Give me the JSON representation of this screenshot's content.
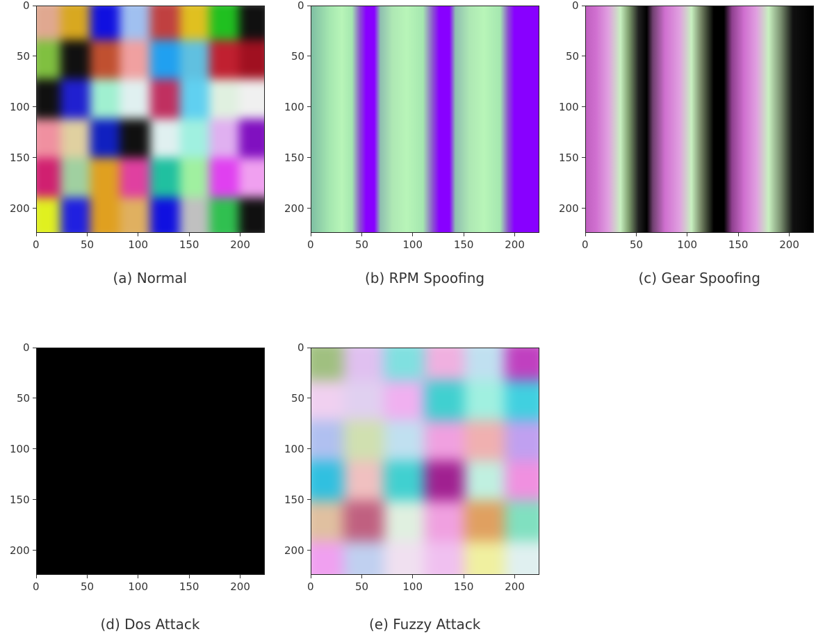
{
  "chart_data": [
    {
      "type": "heatmap",
      "caption": "(a) Normal",
      "xlim": [
        0,
        224
      ],
      "ylim": [
        0,
        224
      ],
      "xticks": [
        "0",
        "50",
        "100",
        "150",
        "200"
      ],
      "yticks": [
        "0",
        "50",
        "100",
        "150",
        "200"
      ],
      "pattern": "colorful blurred blocks",
      "blocks": [
        {
          "color": "#e0a890"
        },
        {
          "color": "#d8a820"
        },
        {
          "color": "#1010e0"
        },
        {
          "color": "#a0c0f0"
        },
        {
          "color": "#c04040"
        },
        {
          "color": "#e0c020"
        },
        {
          "color": "#20c020"
        },
        {
          "color": "#101010"
        },
        {
          "color": "#80c040"
        },
        {
          "color": "#101010"
        },
        {
          "color": "#c05030"
        },
        {
          "color": "#f0a0a0"
        },
        {
          "color": "#20a0f0"
        },
        {
          "color": "#60c0e0"
        },
        {
          "color": "#c02030"
        },
        {
          "color": "#a01020"
        },
        {
          "color": "#101010"
        },
        {
          "color": "#2020d0"
        },
        {
          "color": "#a0f0d0"
        },
        {
          "color": "#e0f0f0"
        },
        {
          "color": "#c03060"
        },
        {
          "color": "#60d0f0"
        },
        {
          "color": "#e0f0e0"
        },
        {
          "color": "#f0f0f0"
        },
        {
          "color": "#f090a0"
        },
        {
          "color": "#e0d0a0"
        },
        {
          "color": "#1020c0"
        },
        {
          "color": "#101010"
        },
        {
          "color": "#e0f0f0"
        },
        {
          "color": "#a0f0e0"
        },
        {
          "color": "#e0b0f0"
        },
        {
          "color": "#8010c0"
        },
        {
          "color": "#d02070"
        },
        {
          "color": "#a0d0a0"
        },
        {
          "color": "#e0a020"
        },
        {
          "color": "#e040a0"
        },
        {
          "color": "#20c0a0"
        },
        {
          "color": "#a0f0a0"
        },
        {
          "color": "#e040f0"
        },
        {
          "color": "#f0a0f0"
        },
        {
          "color": "#e0f020"
        },
        {
          "color": "#2020e0"
        },
        {
          "color": "#e0a020"
        },
        {
          "color": "#e0b060"
        },
        {
          "color": "#1010e0"
        },
        {
          "color": "#c0c0c0"
        },
        {
          "color": "#30c050"
        },
        {
          "color": "#101010"
        }
      ]
    },
    {
      "type": "heatmap",
      "caption": "(b) RPM Spoofing",
      "xlim": [
        0,
        224
      ],
      "ylim": [
        0,
        224
      ],
      "xticks": [
        "0",
        "50",
        "100",
        "150",
        "200"
      ],
      "yticks": [
        "0",
        "50",
        "100",
        "150",
        "200"
      ],
      "pattern": "vertical stripes",
      "gradient": [
        {
          "x": 0,
          "color": "#7fbfa3"
        },
        {
          "x": 18,
          "color": "#a5e7b0"
        },
        {
          "x": 30,
          "color": "#b8f5b8"
        },
        {
          "x": 40,
          "color": "#a5e7b0"
        },
        {
          "x": 48,
          "color": "#8a50d0"
        },
        {
          "x": 54,
          "color": "#8800ff"
        },
        {
          "x": 62,
          "color": "#8800ff"
        },
        {
          "x": 68,
          "color": "#8fbfb0"
        },
        {
          "x": 80,
          "color": "#aee8b4"
        },
        {
          "x": 94,
          "color": "#b8f5b8"
        },
        {
          "x": 110,
          "color": "#a5e7b0"
        },
        {
          "x": 120,
          "color": "#8a50d0"
        },
        {
          "x": 126,
          "color": "#8800ff"
        },
        {
          "x": 136,
          "color": "#8800ff"
        },
        {
          "x": 142,
          "color": "#8fbfb0"
        },
        {
          "x": 156,
          "color": "#aee8b4"
        },
        {
          "x": 170,
          "color": "#b8f5b8"
        },
        {
          "x": 186,
          "color": "#a5e7b0"
        },
        {
          "x": 194,
          "color": "#8a50d0"
        },
        {
          "x": 200,
          "color": "#8800ff"
        },
        {
          "x": 224,
          "color": "#8800ff"
        }
      ]
    },
    {
      "type": "heatmap",
      "caption": "(c) Gear Spoofing",
      "xlim": [
        0,
        224
      ],
      "ylim": [
        0,
        224
      ],
      "xticks": [
        "0",
        "50",
        "100",
        "150",
        "200"
      ],
      "yticks": [
        "0",
        "50",
        "100",
        "150",
        "200"
      ],
      "pattern": "vertical stripes",
      "gradient": [
        {
          "x": 0,
          "color": "#c060c0"
        },
        {
          "x": 10,
          "color": "#d070d0"
        },
        {
          "x": 22,
          "color": "#e0a0e0"
        },
        {
          "x": 34,
          "color": "#c8f0c0"
        },
        {
          "x": 42,
          "color": "#80a070"
        },
        {
          "x": 52,
          "color": "#202020"
        },
        {
          "x": 60,
          "color": "#000000"
        },
        {
          "x": 66,
          "color": "#704070"
        },
        {
          "x": 78,
          "color": "#d070d0"
        },
        {
          "x": 92,
          "color": "#e0a0e0"
        },
        {
          "x": 104,
          "color": "#c8f0c0"
        },
        {
          "x": 114,
          "color": "#708060"
        },
        {
          "x": 126,
          "color": "#000000"
        },
        {
          "x": 136,
          "color": "#000000"
        },
        {
          "x": 144,
          "color": "#904090"
        },
        {
          "x": 156,
          "color": "#d070d0"
        },
        {
          "x": 168,
          "color": "#e0a0e0"
        },
        {
          "x": 180,
          "color": "#c8f0c0"
        },
        {
          "x": 192,
          "color": "#7a9070"
        },
        {
          "x": 204,
          "color": "#101010"
        },
        {
          "x": 224,
          "color": "#000000"
        }
      ]
    },
    {
      "type": "heatmap",
      "caption": "(d) Dos Attack",
      "xlim": [
        0,
        224
      ],
      "ylim": [
        0,
        224
      ],
      "xticks": [
        "0",
        "50",
        "100",
        "150",
        "200"
      ],
      "yticks": [
        "0",
        "50",
        "100",
        "150",
        "200"
      ],
      "pattern": "uniform",
      "color": "#000000"
    },
    {
      "type": "heatmap",
      "caption": "(e) Fuzzy Attack",
      "xlim": [
        0,
        224
      ],
      "ylim": [
        0,
        224
      ],
      "xticks": [
        "0",
        "50",
        "100",
        "150",
        "200"
      ],
      "yticks": [
        "0",
        "50",
        "100",
        "150",
        "200"
      ],
      "pattern": "pastel blurred blocks",
      "blocks": [
        {
          "color": "#a0c080"
        },
        {
          "color": "#e0c0f0"
        },
        {
          "color": "#80e0e0"
        },
        {
          "color": "#f0b0e0"
        },
        {
          "color": "#c0e0f0"
        },
        {
          "color": "#c040c0"
        },
        {
          "color": "#f0d0f0"
        },
        {
          "color": "#e0d0f0"
        },
        {
          "color": "#f0b0f0"
        },
        {
          "color": "#40d0d0"
        },
        {
          "color": "#a0f0e0"
        },
        {
          "color": "#40d0e0"
        },
        {
          "color": "#b0c0f0"
        },
        {
          "color": "#d0e0b0"
        },
        {
          "color": "#c0e0f0"
        },
        {
          "color": "#f0a0e0"
        },
        {
          "color": "#f0b0b0"
        },
        {
          "color": "#c0a0f0"
        },
        {
          "color": "#30c0e0"
        },
        {
          "color": "#f0c0c0"
        },
        {
          "color": "#40d0d0"
        },
        {
          "color": "#a02090"
        },
        {
          "color": "#c0f0e0"
        },
        {
          "color": "#f090e0"
        },
        {
          "color": "#e0c0a0"
        },
        {
          "color": "#c06080"
        },
        {
          "color": "#e0f0e0"
        },
        {
          "color": "#f0a0e0"
        },
        {
          "color": "#e0a060"
        },
        {
          "color": "#80e0c0"
        },
        {
          "color": "#f0a0f0"
        },
        {
          "color": "#c0d0f0"
        },
        {
          "color": "#f0e0f0"
        },
        {
          "color": "#f0c0f0"
        },
        {
          "color": "#f0f0a0"
        },
        {
          "color": "#e0f0f0"
        }
      ]
    }
  ]
}
